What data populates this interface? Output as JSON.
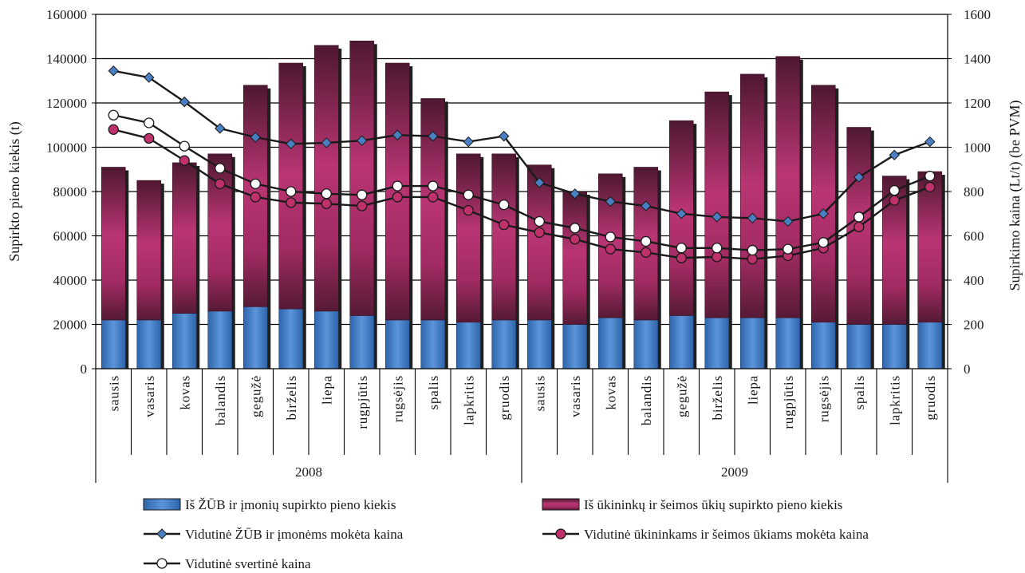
{
  "chart_data": {
    "type": "bar",
    "stacked": true,
    "categories": [
      "sausis",
      "vasaris",
      "kovas",
      "balandis",
      "gegužė",
      "birželis",
      "liepa",
      "rugpjūtis",
      "rugsėjis",
      "spalis",
      "lapkritis",
      "gruodis",
      "sausis",
      "vasaris",
      "kovas",
      "balandis",
      "gegužė",
      "birželis",
      "liepa",
      "rugpjūtis",
      "rugsėjis",
      "spalis",
      "lapkritis",
      "gruodis"
    ],
    "groups": [
      {
        "label": "2008",
        "count": 12
      },
      {
        "label": "2009",
        "count": 12
      }
    ],
    "ylabel": "Supirkto pieno kiekis (t)",
    "y2label": "Supirkimo kaina (Lt/t) (be PVM)",
    "ylim": [
      0,
      160000
    ],
    "y2lim": [
      0,
      1600
    ],
    "yticks": [
      "0",
      "20000",
      "40000",
      "60000",
      "80000",
      "100000",
      "120000",
      "140000",
      "160000"
    ],
    "y2ticks": [
      "0",
      "200",
      "400",
      "600",
      "800",
      "1000",
      "1200",
      "1400",
      "1600"
    ],
    "grid": true,
    "legend_position": "bottom",
    "series": [
      {
        "name": "Iš ŽŪB ir įmonių supirkto pieno kiekis",
        "kind": "bar",
        "axis": "left",
        "color": "#4a7fc1",
        "values": [
          22000,
          22000,
          25000,
          26000,
          28000,
          27000,
          26000,
          24000,
          22000,
          22000,
          21000,
          22000,
          22000,
          20000,
          23000,
          22000,
          24000,
          23000,
          23000,
          23000,
          21000,
          20000,
          20000,
          21000
        ]
      },
      {
        "name": "Iš ūkininkų ir šeimos ūkių supirkto pieno kiekis",
        "kind": "bar",
        "axis": "left",
        "color": "#a0285f",
        "values": [
          69000,
          63000,
          68000,
          71000,
          100000,
          111000,
          120000,
          124000,
          116000,
          100000,
          76000,
          75000,
          70000,
          60000,
          65000,
          69000,
          88000,
          102000,
          110000,
          118000,
          107000,
          89000,
          67000,
          68000
        ]
      },
      {
        "name": "Vidutinė ŽŪB ir įmonėms mokėta kaina",
        "kind": "line",
        "axis": "right",
        "marker": "diamond",
        "color": "#4a7fc1",
        "values": [
          1345,
          1315,
          1205,
          1085,
          1045,
          1015,
          1020,
          1030,
          1055,
          1050,
          1025,
          1050,
          840,
          790,
          755,
          735,
          700,
          685,
          680,
          665,
          700,
          865,
          965,
          1025
        ]
      },
      {
        "name": "Vidutinė ūkininkams ir šeimos ūkiams mokėta kaina",
        "kind": "line",
        "axis": "right",
        "marker": "circle",
        "color": "#c0306a",
        "values": [
          1080,
          1040,
          940,
          835,
          775,
          750,
          745,
          735,
          775,
          775,
          715,
          650,
          615,
          585,
          540,
          525,
          500,
          505,
          495,
          510,
          545,
          640,
          760,
          820
        ]
      },
      {
        "name": "Vidutinė svertinė kaina",
        "kind": "line",
        "axis": "right",
        "marker": "circle",
        "color": "#ffffff",
        "values": [
          1145,
          1110,
          1005,
          905,
          835,
          800,
          790,
          785,
          825,
          825,
          785,
          740,
          665,
          635,
          595,
          575,
          545,
          545,
          535,
          540,
          570,
          685,
          805,
          870
        ]
      }
    ]
  }
}
